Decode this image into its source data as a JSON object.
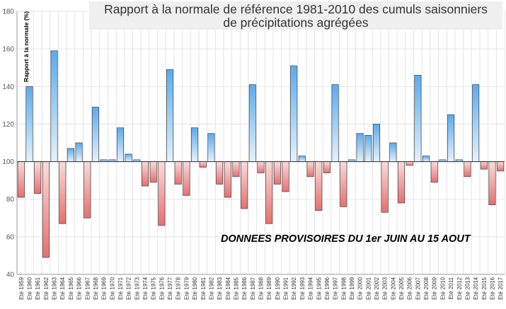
{
  "chart_data": {
    "type": "bar",
    "title": "Rapport à la normale de référence 1981-2010 des cumuls saisonniers de précipitations agrégées",
    "title_lines": [
      "Rapport à la normale de référence 1981-2010 des cumuls saisonniers",
      "de précipitations agrégées"
    ],
    "ylabel": "Rapport à la normale (%)",
    "xlabel": "",
    "annotation": "DONNEES PROVISOIRES DU 1er JUIN AU 15 AOUT",
    "ylim": [
      40,
      180
    ],
    "yticks": [
      40,
      60,
      80,
      100,
      120,
      140,
      160,
      180
    ],
    "baseline": 100,
    "grid": true,
    "colors": {
      "above": "#5aaaee",
      "below": "#e86e6e"
    },
    "categories": [
      "Eté 1959",
      "Eté 1960",
      "Eté 1961",
      "Eté 1962",
      "Eté 1963",
      "Eté 1964",
      "Eté 1965",
      "Eté 1966",
      "Eté 1967",
      "Eté 1968",
      "Eté 1969",
      "Eté 1970",
      "Eté 1971",
      "Eté 1972",
      "Eté 1973",
      "Eté 1974",
      "Eté 1975",
      "Eté 1976",
      "Eté 1977",
      "Eté 1978",
      "Eté 1979",
      "Eté 1980",
      "Eté 1981",
      "Eté 1982",
      "Eté 1983",
      "Eté 1984",
      "Eté 1985",
      "Eté 1986",
      "Eté 1987",
      "Eté 1988",
      "Eté 1989",
      "Eté 1990",
      "Eté 1991",
      "Eté 1992",
      "Eté 1993",
      "Eté 1994",
      "Eté 1995",
      "Eté 1996",
      "Eté 1997",
      "Eté 1998",
      "Eté 1999",
      "Eté 2000",
      "Eté 2001",
      "Eté 2002",
      "Eté 2003",
      "Eté 2004",
      "Eté 2005",
      "Eté 2006",
      "Eté 2007",
      "Eté 2008",
      "Eté 2009",
      "Eté 2010",
      "Eté 2011",
      "Eté 2012",
      "Eté 2013",
      "Eté 2014",
      "Eté 2015",
      "Eté 2016",
      "Eté 2017"
    ],
    "values": [
      81,
      140,
      83,
      49,
      159,
      67,
      107,
      110,
      70,
      129,
      101,
      101,
      118,
      104,
      101,
      87,
      89,
      66,
      149,
      88,
      82,
      118,
      97,
      115,
      88,
      81,
      92,
      75,
      141,
      94,
      67,
      88,
      84,
      151,
      103,
      92,
      74,
      94,
      141,
      76,
      101,
      115,
      114,
      120,
      73,
      110,
      78,
      98,
      146,
      103,
      89,
      101,
      125,
      101,
      92,
      141,
      96,
      77,
      95
    ]
  }
}
